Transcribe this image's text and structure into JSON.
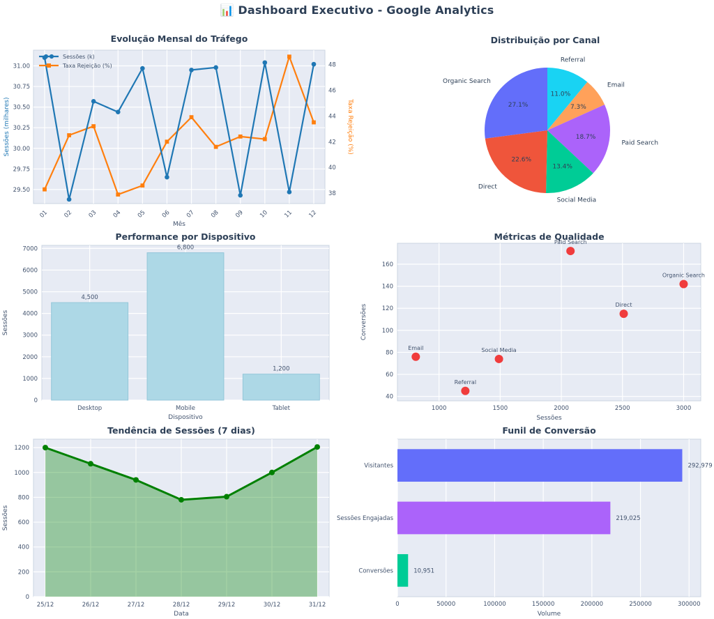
{
  "page": {
    "title_icon": "📊",
    "title": "Dashboard Executivo - Google Analytics"
  },
  "colors": {
    "background": "#ffffff",
    "plot_bg": "#e7ebf4",
    "grid": "#ffffff",
    "title": "#2e4057",
    "tick": "#42536e",
    "spine": "#cbd4e2",
    "label": "#2e4057"
  },
  "chart_data": [
    {
      "type": "line",
      "title": "Evolução Mensal do Tráfego",
      "xlabel": "Mês",
      "ylabel_left": "Sessões (milhares)",
      "ylabel_right": "Taxa Rejeição (%)",
      "categories": [
        "01",
        "02",
        "03",
        "04",
        "05",
        "06",
        "07",
        "08",
        "09",
        "10",
        "11",
        "12"
      ],
      "series": [
        {
          "name": "Sessões (k)",
          "axis": "left",
          "color": "#1f77b4",
          "marker": "circle",
          "values": [
            31.1,
            29.38,
            30.57,
            30.44,
            30.97,
            29.65,
            30.95,
            30.98,
            29.43,
            31.04,
            29.47,
            31.02
          ]
        },
        {
          "name": "Taxa Rejeição (%)",
          "axis": "right",
          "color": "#ff7f0e",
          "marker": "square",
          "values": [
            38.3,
            42.5,
            43.2,
            37.9,
            38.6,
            42.0,
            43.9,
            41.6,
            42.4,
            42.2,
            48.6,
            43.5
          ]
        }
      ],
      "yticks_left": [
        29.5,
        29.75,
        30.0,
        30.25,
        30.5,
        30.75,
        31.0
      ],
      "ylim_left": [
        29.33,
        31.19
      ],
      "yticks_right": [
        38,
        40,
        42,
        44,
        46,
        48
      ],
      "ylim_right": [
        37.2,
        49.1
      ],
      "legend_position": "top-left",
      "grid": true
    },
    {
      "type": "pie",
      "title": "Distribuição por Canal",
      "direction": "clockwise-from-top",
      "slices": [
        {
          "label": "Referral",
          "pct": 11.0,
          "pct_label": "11.0%",
          "color": "#19d3f3"
        },
        {
          "label": "Email",
          "pct": 7.3,
          "pct_label": "7.3%",
          "color": "#ffa15a"
        },
        {
          "label": "Paid Search",
          "pct": 18.7,
          "pct_label": "18.7%",
          "color": "#ab63fa"
        },
        {
          "label": "Social Media",
          "pct": 13.4,
          "pct_label": "13.4%",
          "color": "#00cc96"
        },
        {
          "label": "Direct",
          "pct": 22.6,
          "pct_label": "22.6%",
          "color": "#ef553b"
        },
        {
          "label": "Organic Search",
          "pct": 27.1,
          "pct_label": "27.1%",
          "color": "#636efa"
        }
      ]
    },
    {
      "type": "bar",
      "title": "Performance por Dispositivo",
      "xlabel": "Dispositivo",
      "ylabel": "Sessões",
      "categories": [
        "Desktop",
        "Mobile",
        "Tablet"
      ],
      "values": [
        4500,
        6800,
        1200
      ],
      "value_labels": [
        "4,500",
        "6,800",
        "1,200"
      ],
      "bar_color": "#add8e6",
      "bar_edge": "#93c6d9",
      "yticks": [
        0,
        1000,
        2000,
        3000,
        4000,
        5000,
        6000,
        7000
      ],
      "ylim": [
        0,
        7140
      ],
      "grid": true
    },
    {
      "type": "scatter",
      "title": "Métricas de Qualidade",
      "xlabel": "Sessões",
      "ylabel": "Conversões",
      "point_color": "#f03c3c",
      "points": [
        {
          "label": "Email",
          "x": 810,
          "y": 76
        },
        {
          "label": "Referral",
          "x": 1215,
          "y": 45
        },
        {
          "label": "Social Media",
          "x": 1490,
          "y": 74
        },
        {
          "label": "Paid Search",
          "x": 2075,
          "y": 172
        },
        {
          "label": "Direct",
          "x": 2510,
          "y": 115
        },
        {
          "label": "Organic Search",
          "x": 3000,
          "y": 142
        }
      ],
      "xticks": [
        1000,
        1500,
        2000,
        2500,
        3000
      ],
      "xlim": [
        660,
        3140
      ],
      "yticks": [
        40,
        60,
        80,
        100,
        120,
        140,
        160
      ],
      "ylim": [
        36,
        179
      ],
      "grid": true
    },
    {
      "type": "area",
      "title": "Tendência de Sessões (7 dias)",
      "xlabel": "Data",
      "ylabel": "Sessões",
      "categories": [
        "25/12",
        "26/12",
        "27/12",
        "28/12",
        "29/12",
        "30/12",
        "31/12"
      ],
      "values": [
        1200,
        1070,
        940,
        780,
        805,
        1000,
        1205
      ],
      "line_color": "#008000",
      "fill_color": "rgba(0,128,0,0.35)",
      "yticks": [
        0,
        200,
        400,
        600,
        800,
        1000,
        1200
      ],
      "ylim": [
        0,
        1268
      ],
      "grid": true
    },
    {
      "type": "hbar",
      "title": "Funil de Conversão",
      "xlabel": "Volume",
      "categories": [
        "Visitantes",
        "Sessões Engajadas",
        "Conversões"
      ],
      "values": [
        292979,
        219025,
        10951
      ],
      "value_labels": [
        "292,979",
        "219,025",
        "10,951"
      ],
      "bar_colors": [
        "#636efa",
        "#ab63fa",
        "#00cc96"
      ],
      "xticks": [
        0,
        50000,
        100000,
        150000,
        200000,
        250000,
        300000
      ],
      "xtick_labels": [
        "0",
        "50000",
        "100000",
        "150000",
        "200000",
        "250000",
        "300000"
      ],
      "xlim": [
        0,
        312000
      ],
      "grid": true
    }
  ]
}
